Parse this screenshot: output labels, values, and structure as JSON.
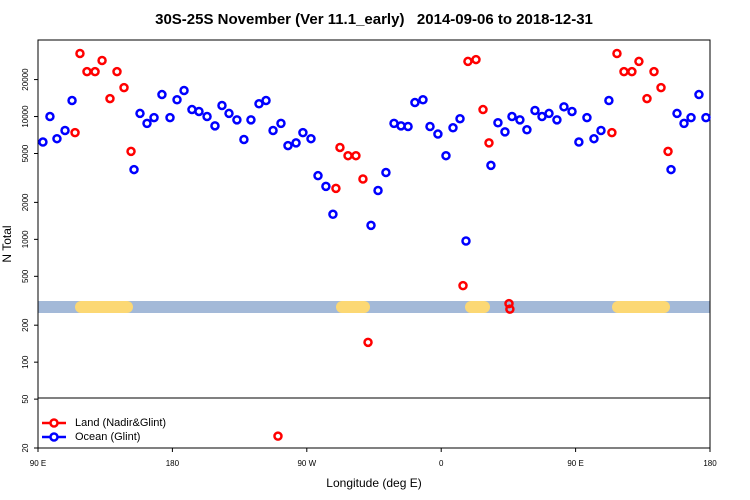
{
  "chart_data": {
    "type": "scatter",
    "title": "30S-25S November (Ver 11.1_early)   2014-09-06 to 2018-12-31",
    "xlabel": "Longitude (deg E)",
    "ylabel": "N Total",
    "log_y": true,
    "legend": "lower left",
    "xlim": [
      90,
      540
    ],
    "xticks": [
      {
        "value": 90,
        "label": "90 E"
      },
      {
        "value": 180,
        "label": "180"
      },
      {
        "value": 270,
        "label": "90 W"
      },
      {
        "value": 360,
        "label": "0"
      },
      {
        "value": 450,
        "label": "90 E"
      },
      {
        "value": 540,
        "label": "180"
      }
    ],
    "ylim": [
      20,
      42000
    ],
    "yticks": [
      20,
      50,
      100,
      200,
      500,
      1000,
      2000,
      5000,
      10000,
      20000
    ],
    "series": [
      {
        "name": "Land (Nadir&Glint)",
        "color": "#ff0000",
        "x": [
          114.8,
          118.1,
          122.8,
          128.2,
          132.9,
          138.2,
          142.9,
          147.6,
          152.3,
          292.2,
          297.6,
          302.9,
          289.5,
          307.6,
          311,
          250.7,
          374.6,
          377.9,
          383.3,
          388,
          392,
          405.4,
          406,
          474.3,
          477.7,
          482.4,
          487.7,
          492.4,
          497.8,
          502.5,
          507.2,
          511.9
        ],
        "values": [
          7400,
          32600,
          23200,
          23200,
          28600,
          14000,
          23200,
          17200,
          5200,
          5600,
          4800,
          4800,
          2600,
          3100,
          145,
          25,
          420,
          28100,
          29100,
          11400,
          6100,
          300,
          270,
          7400,
          32600,
          23200,
          23200,
          28100,
          14000,
          23200,
          17200,
          5200
        ]
      },
      {
        "name": "Ocean (Glint)",
        "color": "#0000ff",
        "x": [
          93.3,
          98,
          102.7,
          108.1,
          112.8,
          154.3,
          158.3,
          163,
          167.7,
          173,
          178.4,
          183.1,
          187.8,
          193.1,
          197.8,
          203.2,
          208.5,
          213.2,
          217.9,
          223.2,
          227.9,
          232.6,
          238,
          242.7,
          247.4,
          252.7,
          257.4,
          262.8,
          267.4,
          272.8,
          277.5,
          282.8,
          287.5,
          313,
          317.7,
          323,
          328.4,
          333.1,
          337.8,
          342.4,
          347.8,
          352.5,
          357.8,
          363.2,
          367.9,
          372.6,
          376.6,
          393.3,
          398,
          402.7,
          407.4,
          412.7,
          417.4,
          422.8,
          427.5,
          432.2,
          437.5,
          442.2,
          447.6,
          452.2,
          457.6,
          462.3,
          467,
          472.3,
          513.9,
          517.9,
          522.6,
          527.3,
          532.6,
          537.3
        ],
        "values": [
          6200,
          10000,
          6600,
          7700,
          13500,
          3700,
          10600,
          8800,
          9800,
          15100,
          9800,
          13700,
          16300,
          11400,
          11000,
          10000,
          8400,
          12300,
          10600,
          9400,
          6500,
          9400,
          12700,
          13500,
          7700,
          8800,
          5800,
          6100,
          7400,
          6600,
          3300,
          2700,
          1600,
          1300,
          2500,
          3500,
          8800,
          8400,
          8300,
          13000,
          13700,
          8300,
          7200,
          4800,
          8100,
          9600,
          970,
          4000,
          8900,
          7500,
          10000,
          9400,
          7800,
          11200,
          10000,
          10600,
          9400,
          12000,
          11000,
          6200,
          9800,
          6600,
          7700,
          13500,
          3700,
          10600,
          8800,
          9800,
          15100,
          9800
        ]
      }
    ]
  }
}
